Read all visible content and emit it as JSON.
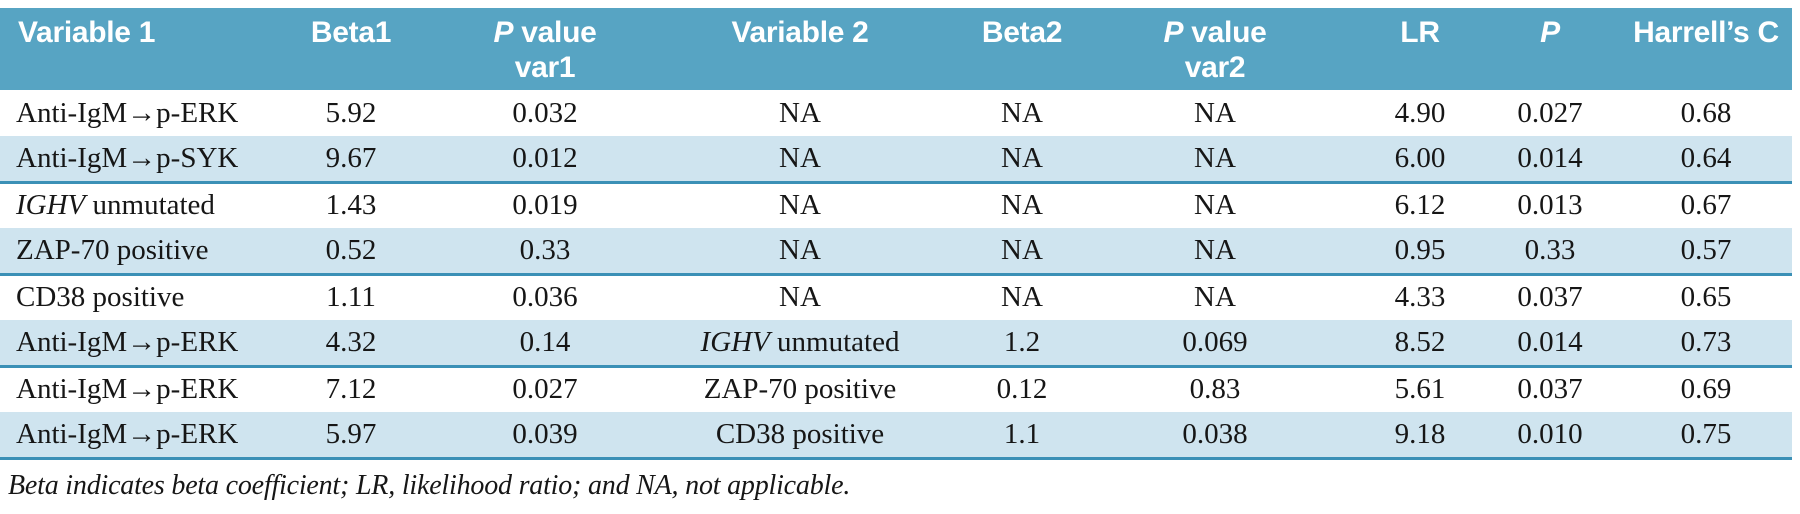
{
  "colors": {
    "header_bg": "#57a4c3",
    "shaded_row_bg": "#cfe4ef",
    "row_rule": "#3b90b6",
    "header_text": "#ffffff",
    "body_text": "#161616"
  },
  "header": {
    "variable1": "Variable 1",
    "beta1": "Beta1",
    "p_italic": "P",
    "pvalue_rest": "value",
    "pvalue_var1_line2": "var1",
    "variable2": "Variable 2",
    "beta2": "Beta2",
    "pvalue_var2_line2": "var2",
    "lr": "LR",
    "harrells_c": "Harrell’s C"
  },
  "rows": [
    {
      "v1i": "",
      "v1": "Anti-IgM→p-ERK",
      "b1": "5.92",
      "p1": "0.032",
      "v2i": "",
      "v2": "NA",
      "b2": "NA",
      "p2": "NA",
      "lr": "4.90",
      "p": "0.027",
      "c": "0.68"
    },
    {
      "v1i": "",
      "v1": "Anti-IgM→p-SYK",
      "b1": "9.67",
      "p1": "0.012",
      "v2i": "",
      "v2": "NA",
      "b2": "NA",
      "p2": "NA",
      "lr": "6.00",
      "p": "0.014",
      "c": "0.64"
    },
    {
      "v1i": "IGHV",
      "v1": " unmutated",
      "b1": "1.43",
      "p1": "0.019",
      "v2i": "",
      "v2": "NA",
      "b2": "NA",
      "p2": "NA",
      "lr": "6.12",
      "p": "0.013",
      "c": "0.67"
    },
    {
      "v1i": "",
      "v1": "ZAP-70 positive",
      "b1": "0.52",
      "p1": "0.33",
      "v2i": "",
      "v2": "NA",
      "b2": "NA",
      "p2": "NA",
      "lr": "0.95",
      "p": "0.33",
      "c": "0.57"
    },
    {
      "v1i": "",
      "v1": "CD38 positive",
      "b1": "1.11",
      "p1": "0.036",
      "v2i": "",
      "v2": "NA",
      "b2": "NA",
      "p2": "NA",
      "lr": "4.33",
      "p": "0.037",
      "c": "0.65"
    },
    {
      "v1i": "",
      "v1": "Anti-IgM→p-ERK",
      "b1": "4.32",
      "p1": "0.14",
      "v2i": "IGHV",
      "v2": " unmutated",
      "b2": "1.2",
      "p2": "0.069",
      "lr": "8.52",
      "p": "0.014",
      "c": "0.73"
    },
    {
      "v1i": "",
      "v1": "Anti-IgM→p-ERK",
      "b1": "7.12",
      "p1": "0.027",
      "v2i": "",
      "v2": "ZAP-70 positive",
      "b2": "0.12",
      "p2": "0.83",
      "lr": "5.61",
      "p": "0.037",
      "c": "0.69"
    },
    {
      "v1i": "",
      "v1": "Anti-IgM→p-ERK",
      "b1": "5.97",
      "p1": "0.039",
      "v2i": "",
      "v2": "CD38 positive",
      "b2": "1.1",
      "p2": "0.038",
      "lr": "9.18",
      "p": "0.010",
      "c": "0.75"
    }
  ],
  "footnote": "Beta indicates beta coefficient; LR, likelihood ratio; and NA, not applicable."
}
